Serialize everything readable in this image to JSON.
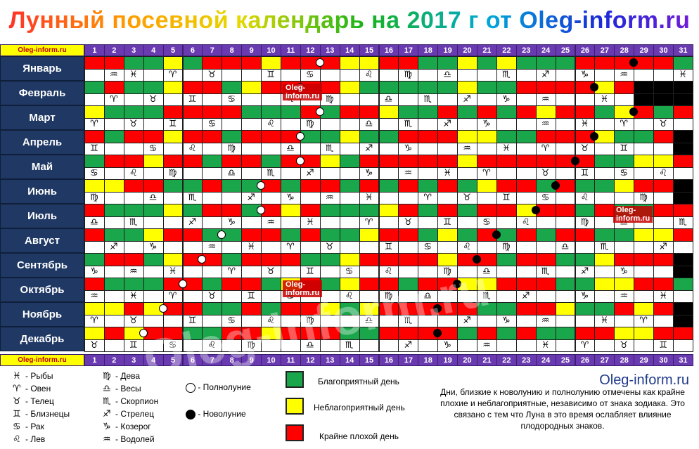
{
  "title": "Лунный посевной календарь на 2017 г от Oleg-inform.ru",
  "site_label": "Oleg-inform.ru",
  "days": [
    "1",
    "2",
    "3",
    "4",
    "5",
    "6",
    "7",
    "8",
    "9",
    "10",
    "11",
    "12",
    "13",
    "14",
    "15",
    "16",
    "17",
    "18",
    "19",
    "20",
    "21",
    "22",
    "23",
    "24",
    "25",
    "26",
    "27",
    "28",
    "29",
    "30",
    "31"
  ],
  "colors": {
    "green": "#1aa64a",
    "yellow": "#ffff00",
    "red": "#ff0000",
    "white": "#ffffff",
    "black": "#000000",
    "header": "#6a3bb0",
    "month": "#1f3864"
  },
  "months": [
    {
      "name": "Январь",
      "days": "RRGGYGRRRYRRRYYRRGGYGYGGGRRRRRG",
      "fullmoon": 12,
      "newmoon": 28,
      "zodiac": [
        [
          "2",
          "♒"
        ],
        [
          "3",
          "♓"
        ],
        [
          "5",
          "♈"
        ],
        [
          "7",
          "♉"
        ],
        [
          "10",
          "♊"
        ],
        [
          "12",
          "♋"
        ],
        [
          "15",
          "♌"
        ],
        [
          "17",
          "♍"
        ],
        [
          "19",
          "♎"
        ],
        [
          "22",
          "♏"
        ],
        [
          "24",
          "♐"
        ],
        [
          "26",
          "♑"
        ],
        [
          "28",
          "♒"
        ],
        [
          "31",
          "♓"
        ]
      ]
    },
    {
      "name": "Февраль",
      "days": "GRGGYRRGYRRRRYGGGGGYGGRRRRYR",
      "fullmoon": 11,
      "newmoon": 26,
      "zodiac": [
        [
          "2",
          "♈"
        ],
        [
          "4",
          "♉"
        ],
        [
          "6",
          "♊"
        ],
        [
          "8",
          "♋"
        ],
        [
          "11",
          "♌"
        ],
        [
          "13",
          "♍"
        ],
        [
          "16",
          "♎"
        ],
        [
          "18",
          "♏"
        ],
        [
          "20",
          "♐"
        ],
        [
          "22",
          "♑"
        ],
        [
          "24",
          "♒"
        ],
        [
          "27",
          "♓"
        ]
      ]
    },
    {
      "name": "Март",
      "days": "YGGGRRRRGGGRGRRYGGRGRGRYRRGYRGR",
      "fullmoon": 12,
      "newmoon": 28,
      "zodiac": [
        [
          "1",
          "♈"
        ],
        [
          "3",
          "♉"
        ],
        [
          "5",
          "♊"
        ],
        [
          "7",
          "♋"
        ],
        [
          "10",
          "♌"
        ],
        [
          "12",
          "♍"
        ],
        [
          "15",
          "♎"
        ],
        [
          "17",
          "♏"
        ],
        [
          "19",
          "♐"
        ],
        [
          "21",
          "♑"
        ],
        [
          "24",
          "♒"
        ],
        [
          "26",
          "♓"
        ],
        [
          "28",
          "♈"
        ],
        [
          "30",
          "♉"
        ]
      ]
    },
    {
      "name": "Апрель",
      "days": "RGRRYRRGRRRGGYGGRRRYYGGRRRYGGR",
      "fullmoon": 11,
      "newmoon": 26,
      "zodiac": [
        [
          "1",
          "♊"
        ],
        [
          "4",
          "♋"
        ],
        [
          "6",
          "♌"
        ],
        [
          "8",
          "♍"
        ],
        [
          "11",
          "♎"
        ],
        [
          "13",
          "♏"
        ],
        [
          "15",
          "♐"
        ],
        [
          "17",
          "♑"
        ],
        [
          "20",
          "♒"
        ],
        [
          "22",
          "♓"
        ],
        [
          "24",
          "♈"
        ],
        [
          "26",
          "♉"
        ],
        [
          "28",
          "♊"
        ]
      ]
    },
    {
      "name": "Май",
      "days": "GRRYRRGRRGRRYGRRRRRYRRRRRRGGYYR",
      "fullmoon": 11,
      "newmoon": 25,
      "zodiac": [
        [
          "1",
          "♋"
        ],
        [
          "3",
          "♌"
        ],
        [
          "5",
          "♍"
        ],
        [
          "8",
          "♎"
        ],
        [
          "10",
          "♏"
        ],
        [
          "12",
          "♐"
        ],
        [
          "15",
          "♑"
        ],
        [
          "17",
          "♒"
        ],
        [
          "19",
          "♓"
        ],
        [
          "21",
          "♈"
        ],
        [
          "24",
          "♉"
        ],
        [
          "26",
          "♊"
        ],
        [
          "28",
          "♋"
        ],
        [
          "30",
          "♌"
        ]
      ]
    },
    {
      "name": "Июнь",
      "days": "YYRRGGRGGRGRRGRGRGRGYRRGRGGYRR",
      "fullmoon": 9,
      "newmoon": 24,
      "zodiac": [
        [
          "1",
          "♍"
        ],
        [
          "4",
          "♎"
        ],
        [
          "6",
          "♏"
        ],
        [
          "9",
          "♐"
        ],
        [
          "11",
          "♑"
        ],
        [
          "13",
          "♒"
        ],
        [
          "15",
          "♓"
        ],
        [
          "18",
          "♈"
        ],
        [
          "20",
          "♉"
        ],
        [
          "22",
          "♊"
        ],
        [
          "24",
          "♋"
        ],
        [
          "26",
          "♌"
        ],
        [
          "29",
          "♍"
        ]
      ]
    },
    {
      "name": "Июль",
      "days": "RGGGYGRRGRYRGGGYRGRGRRYRRGRGGRR",
      "fullmoon": 9,
      "newmoon": 23,
      "zodiac": [
        [
          "1",
          "♎"
        ],
        [
          "3",
          "♏"
        ],
        [
          "6",
          "♐"
        ],
        [
          "8",
          "♑"
        ],
        [
          "10",
          "♒"
        ],
        [
          "12",
          "♓"
        ],
        [
          "15",
          "♈"
        ],
        [
          "17",
          "♉"
        ],
        [
          "19",
          "♊"
        ],
        [
          "21",
          "♋"
        ],
        [
          "23",
          "♌"
        ],
        [
          "26",
          "♍"
        ],
        [
          "28",
          "♎"
        ],
        [
          "31",
          "♏"
        ]
      ]
    },
    {
      "name": "Август",
      "days": "RGGYRRGGRRGRGGYRRGYGRGRGRRGGYYR",
      "fullmoon": 7,
      "newmoon": 21,
      "zodiac": [
        [
          "2",
          "♐"
        ],
        [
          "4",
          "♑"
        ],
        [
          "7",
          "♒"
        ],
        [
          "9",
          "♓"
        ],
        [
          "11",
          "♈"
        ],
        [
          "13",
          "♉"
        ],
        [
          "16",
          "♊"
        ],
        [
          "18",
          "♋"
        ],
        [
          "20",
          "♌"
        ],
        [
          "22",
          "♍"
        ],
        [
          "25",
          "♎"
        ],
        [
          "27",
          "♏"
        ],
        [
          "30",
          "♐"
        ]
      ]
    },
    {
      "name": "Сентябрь",
      "days": "GRRGYRRGRRRGGYRRRRYRRGRRGGYRRR",
      "fullmoon": 6,
      "newmoon": 20,
      "zodiac": [
        [
          "1",
          "♑"
        ],
        [
          "3",
          "♒"
        ],
        [
          "5",
          "♓"
        ],
        [
          "8",
          "♈"
        ],
        [
          "10",
          "♉"
        ],
        [
          "12",
          "♊"
        ],
        [
          "14",
          "♋"
        ],
        [
          "16",
          "♌"
        ],
        [
          "19",
          "♍"
        ],
        [
          "21",
          "♎"
        ],
        [
          "24",
          "♏"
        ],
        [
          "26",
          "♐"
        ],
        [
          "28",
          "♑"
        ]
      ]
    },
    {
      "name": "Октябрь",
      "days": "RGGGRRGRRGYRGYRRGRRYYRRRGGYYRRG",
      "fullmoon": 5,
      "newmoon": 19,
      "zodiac": [
        [
          "1",
          "♒"
        ],
        [
          "3",
          "♓"
        ],
        [
          "5",
          "♈"
        ],
        [
          "7",
          "♉"
        ],
        [
          "9",
          "♊"
        ],
        [
          "11",
          "♋"
        ],
        [
          "14",
          "♌"
        ],
        [
          "16",
          "♍"
        ],
        [
          "18",
          "♎"
        ],
        [
          "21",
          "♏"
        ],
        [
          "23",
          "♐"
        ],
        [
          "26",
          "♑"
        ],
        [
          "28",
          "♒"
        ],
        [
          "30",
          "♓"
        ]
      ]
    },
    {
      "name": "Ноябрь",
      "days": "YYRYRRGGRGRRYGYRRRRRGGRRYGGRYR",
      "fullmoon": 4,
      "newmoon": 18,
      "zodiac": [
        [
          "1",
          "♈"
        ],
        [
          "3",
          "♉"
        ],
        [
          "6",
          "♊"
        ],
        [
          "8",
          "♋"
        ],
        [
          "10",
          "♌"
        ],
        [
          "12",
          "♍"
        ],
        [
          "15",
          "♎"
        ],
        [
          "17",
          "♏"
        ],
        [
          "20",
          "♐"
        ],
        [
          "22",
          "♑"
        ],
        [
          "24",
          "♒"
        ],
        [
          "27",
          "♓"
        ],
        [
          "29",
          "♈"
        ]
      ]
    },
    {
      "name": "Декабрь",
      "days": "YRYRRGGRRYRRRGGRRRRGRGRGGRRYYRR",
      "fullmoon": 3,
      "newmoon": 18,
      "zodiac": [
        [
          "1",
          "♉"
        ],
        [
          "3",
          "♊"
        ],
        [
          "5",
          "♋"
        ],
        [
          "7",
          "♌"
        ],
        [
          "9",
          "♍"
        ],
        [
          "12",
          "♎"
        ],
        [
          "14",
          "♏"
        ],
        [
          "17",
          "♐"
        ],
        [
          "19",
          "♑"
        ],
        [
          "21",
          "♒"
        ],
        [
          "24",
          "♓"
        ],
        [
          "26",
          "♈"
        ],
        [
          "28",
          "♉"
        ],
        [
          "30",
          "♊"
        ]
      ]
    }
  ],
  "legend": {
    "zodiac_col1": [
      [
        "♓",
        "- Рыбы"
      ],
      [
        "♈",
        "- Овен"
      ],
      [
        "♉",
        "- Телец"
      ],
      [
        "♊",
        "- Близнецы"
      ],
      [
        "♋",
        "- Рак"
      ],
      [
        "♌",
        "- Лев"
      ]
    ],
    "zodiac_col2": [
      [
        "♍",
        "- Дева"
      ],
      [
        "♎",
        "- Весы"
      ],
      [
        "♏",
        "- Скорпион"
      ],
      [
        "♐",
        "- Стрелец"
      ],
      [
        "♑",
        "- Козерог"
      ],
      [
        "♒",
        "- Водолей"
      ]
    ],
    "full_moon": "- Полнолуние",
    "new_moon": "- Новолуние",
    "good_day": "Благоприятный день",
    "neutral_day": "Неблагоприятный день",
    "bad_day": "Крайне плохой день",
    "site": "Oleg-inform.ru",
    "note": "Дни, близкие к новолунию и полнолунию отмечены как крайне плохие и неблагоприятные, независимо от знака зодиака. Это связано с тем что Луна в это время ослабляет влияние плодородных знаков."
  },
  "watermark_text": "Oleg-inform.ru",
  "big_watermark": "Oleg-inform.ru"
}
